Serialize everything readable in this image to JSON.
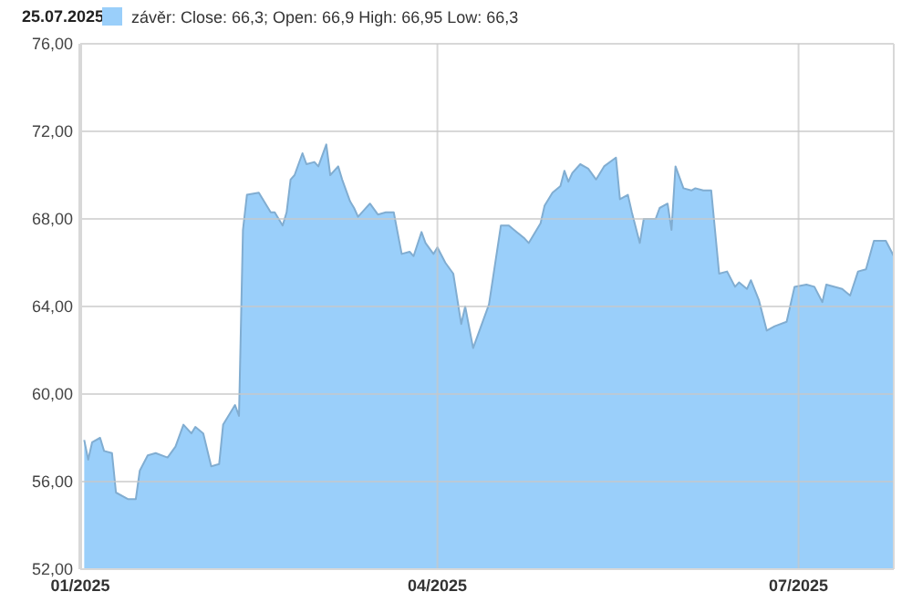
{
  "chart_data": {
    "type": "area",
    "annotations": [
      "25.07.2025"
    ],
    "legend": "top left",
    "grid": true,
    "xlim": [
      "2025-01-01",
      "2025-07-25"
    ],
    "xticks": [
      {
        "value": "2025-01-01",
        "label": "01/2025"
      },
      {
        "value": "2025-04-01",
        "label": "04/2025"
      },
      {
        "value": "2025-07-01",
        "label": "07/2025"
      }
    ],
    "ylim": [
      52,
      76
    ],
    "yticks": [
      {
        "value": 52,
        "label": "52,00"
      },
      {
        "value": 56,
        "label": "56,00"
      },
      {
        "value": 60,
        "label": "60,00"
      },
      {
        "value": 64,
        "label": "64,00"
      },
      {
        "value": 68,
        "label": "68,00"
      },
      {
        "value": 72,
        "label": "72,00"
      },
      {
        "value": 76,
        "label": "76,00"
      }
    ],
    "x": [
      "2025-01-02",
      "2025-01-03",
      "2025-01-04",
      "2025-01-06",
      "2025-01-07",
      "2025-01-09",
      "2025-01-10",
      "2025-01-13",
      "2025-01-15",
      "2025-01-16",
      "2025-01-18",
      "2025-01-20",
      "2025-01-23",
      "2025-01-25",
      "2025-01-27",
      "2025-01-29",
      "2025-01-30",
      "2025-02-01",
      "2025-02-03",
      "2025-02-05",
      "2025-02-06",
      "2025-02-09",
      "2025-02-10",
      "2025-02-11",
      "2025-02-12",
      "2025-02-15",
      "2025-02-18",
      "2025-02-19",
      "2025-02-21",
      "2025-02-22",
      "2025-02-23",
      "2025-02-24",
      "2025-02-26",
      "2025-02-27",
      "2025-03-01",
      "2025-03-02",
      "2025-03-04",
      "2025-03-05",
      "2025-03-07",
      "2025-03-08",
      "2025-03-10",
      "2025-03-11",
      "2025-03-12",
      "2025-03-15",
      "2025-03-17",
      "2025-03-19",
      "2025-03-21",
      "2025-03-23",
      "2025-03-25",
      "2025-03-26",
      "2025-03-28",
      "2025-03-29",
      "2025-03-31",
      "2025-04-01",
      "2025-04-03",
      "2025-04-05",
      "2025-04-07",
      "2025-04-08",
      "2025-04-10",
      "2025-04-14",
      "2025-04-15",
      "2025-04-17",
      "2025-04-19",
      "2025-04-21",
      "2025-04-23",
      "2025-04-24",
      "2025-04-26",
      "2025-04-27",
      "2025-04-28",
      "2025-04-30",
      "2025-05-02",
      "2025-05-03",
      "2025-05-04",
      "2025-05-05",
      "2025-05-07",
      "2025-05-09",
      "2025-05-11",
      "2025-05-13",
      "2025-05-16",
      "2025-05-17",
      "2025-05-19",
      "2025-05-20",
      "2025-05-22",
      "2025-05-23",
      "2025-05-26",
      "2025-05-27",
      "2025-05-29",
      "2025-05-30",
      "2025-05-31",
      "2025-06-02",
      "2025-06-04",
      "2025-06-05",
      "2025-06-07",
      "2025-06-09",
      "2025-06-11",
      "2025-06-13",
      "2025-06-15",
      "2025-06-16",
      "2025-06-18",
      "2025-06-19",
      "2025-06-21",
      "2025-06-23",
      "2025-06-25",
      "2025-06-28",
      "2025-06-30",
      "2025-07-03",
      "2025-07-05",
      "2025-07-07",
      "2025-07-08",
      "2025-07-12",
      "2025-07-14",
      "2025-07-16",
      "2025-07-18",
      "2025-07-20",
      "2025-07-23",
      "2025-07-25"
    ],
    "series": [
      {
        "name": "závěr: Close: 66,3; Open: 66,9 High: 66,95 Low: 66,3",
        "color": "#9acffa",
        "values": [
          57.9,
          57.0,
          57.8,
          58.0,
          57.4,
          57.3,
          55.5,
          55.2,
          55.2,
          56.5,
          57.2,
          57.3,
          57.1,
          57.6,
          58.6,
          58.2,
          58.5,
          58.2,
          56.7,
          56.8,
          58.6,
          59.5,
          59.0,
          67.5,
          69.1,
          69.2,
          68.3,
          68.3,
          67.7,
          68.3,
          69.8,
          70.0,
          71.0,
          70.5,
          70.6,
          70.4,
          71.4,
          70.0,
          70.4,
          69.8,
          68.8,
          68.5,
          68.1,
          68.7,
          68.2,
          68.3,
          68.3,
          66.4,
          66.5,
          66.3,
          67.4,
          66.9,
          66.4,
          66.7,
          66.0,
          65.5,
          63.2,
          64.0,
          62.1,
          64.1,
          65.3,
          67.7,
          67.7,
          67.4,
          67.1,
          66.9,
          67.5,
          67.8,
          68.6,
          69.2,
          69.5,
          70.2,
          69.7,
          70.1,
          70.5,
          70.3,
          69.8,
          70.4,
          70.8,
          68.9,
          69.1,
          68.3,
          66.9,
          68.0,
          68.0,
          68.5,
          68.7,
          67.5,
          70.4,
          69.4,
          69.3,
          69.4,
          69.3,
          69.3,
          65.5,
          65.6,
          64.9,
          65.1,
          64.8,
          65.2,
          64.3,
          62.9,
          63.1,
          63.3,
          64.9,
          65.0,
          64.9,
          64.2,
          65.0,
          64.8,
          64.5,
          65.6,
          65.7,
          67.0,
          67.0,
          66.3
        ]
      }
    ]
  }
}
